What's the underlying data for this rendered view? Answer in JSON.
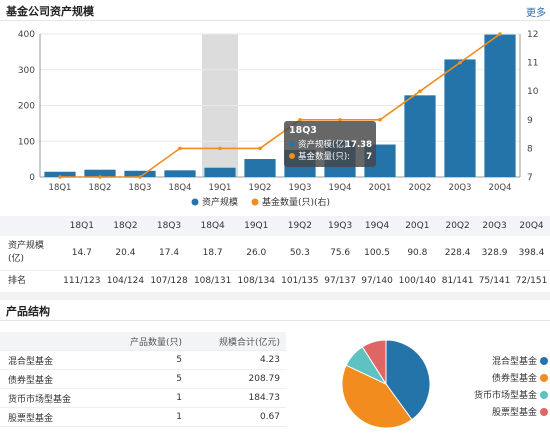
{
  "header": {
    "title": "基金公司资产规模",
    "more_label": "更多"
  },
  "chart_data": {
    "type": "bar",
    "categories": [
      "18Q1",
      "18Q2",
      "18Q3",
      "18Q4",
      "19Q1",
      "19Q2",
      "19Q3",
      "19Q4",
      "20Q1",
      "20Q2",
      "20Q3",
      "20Q4"
    ],
    "series": [
      {
        "name": "资产规模",
        "type": "bar",
        "axis": "left",
        "color": "#2574a9",
        "values": [
          14.7,
          20.4,
          17.4,
          18.7,
          26.0,
          50.3,
          75.6,
          100.5,
          90.8,
          228.4,
          328.9,
          398.4
        ]
      },
      {
        "name": "基金数量(只)(右)",
        "type": "line",
        "axis": "right",
        "color": "#f28c1e",
        "values": [
          7,
          7,
          7,
          8,
          8,
          8,
          9,
          9,
          9,
          10,
          11,
          12
        ]
      }
    ],
    "ylim_left": [
      0,
      400
    ],
    "yticks_left": [
      0,
      100,
      200,
      300,
      400
    ],
    "ylim_right": [
      7,
      12
    ],
    "yticks_right": [
      7,
      8,
      9,
      10,
      11,
      12
    ],
    "highlight_category": "19Q1",
    "tooltip": {
      "title": "18Q3",
      "lines": [
        {
          "label": "资产规模(亿):",
          "value": "17.38",
          "color": "#2574a9"
        },
        {
          "label": "基金数量(只):",
          "value": "7",
          "color": "#f28c1e"
        }
      ]
    },
    "legend_position": "bottom-center",
    "grid": true
  },
  "table": {
    "columns": [
      "18Q1",
      "18Q2",
      "18Q3",
      "18Q4",
      "19Q1",
      "19Q2",
      "19Q3",
      "19Q4",
      "20Q1",
      "20Q2",
      "20Q3",
      "20Q4"
    ],
    "row1_label": "资产规模(亿)",
    "row1": [
      "14.7",
      "20.4",
      "17.4",
      "18.7",
      "26.0",
      "50.3",
      "75.6",
      "100.5",
      "90.8",
      "228.4",
      "328.9",
      "398.4"
    ],
    "row2_label": "排名",
    "row2": [
      "111/123",
      "104/124",
      "107/128",
      "108/131",
      "108/134",
      "101/135",
      "97/137",
      "97/140",
      "100/140",
      "81/141",
      "75/141",
      "72/151"
    ]
  },
  "products": {
    "title": "产品结构",
    "col_count": "产品数量(只)",
    "col_size": "规模合计(亿元)",
    "rows": [
      {
        "name": "混合型基金",
        "count": "5",
        "size": "4.23"
      },
      {
        "name": "债券型基金",
        "count": "5",
        "size": "208.79"
      },
      {
        "name": "货币市场型基金",
        "count": "1",
        "size": "184.73"
      },
      {
        "name": "股票型基金",
        "count": "1",
        "size": "0.67"
      }
    ]
  },
  "pie": {
    "slices": [
      {
        "name": "混合型基金",
        "value": 40,
        "color": "#2574a9"
      },
      {
        "name": "债券型基金",
        "value": 42,
        "color": "#f28c1e"
      },
      {
        "name": "货币市场型基金",
        "value": 9,
        "color": "#5fc1c2"
      },
      {
        "name": "股票型基金",
        "value": 9,
        "color": "#e06666"
      }
    ]
  }
}
